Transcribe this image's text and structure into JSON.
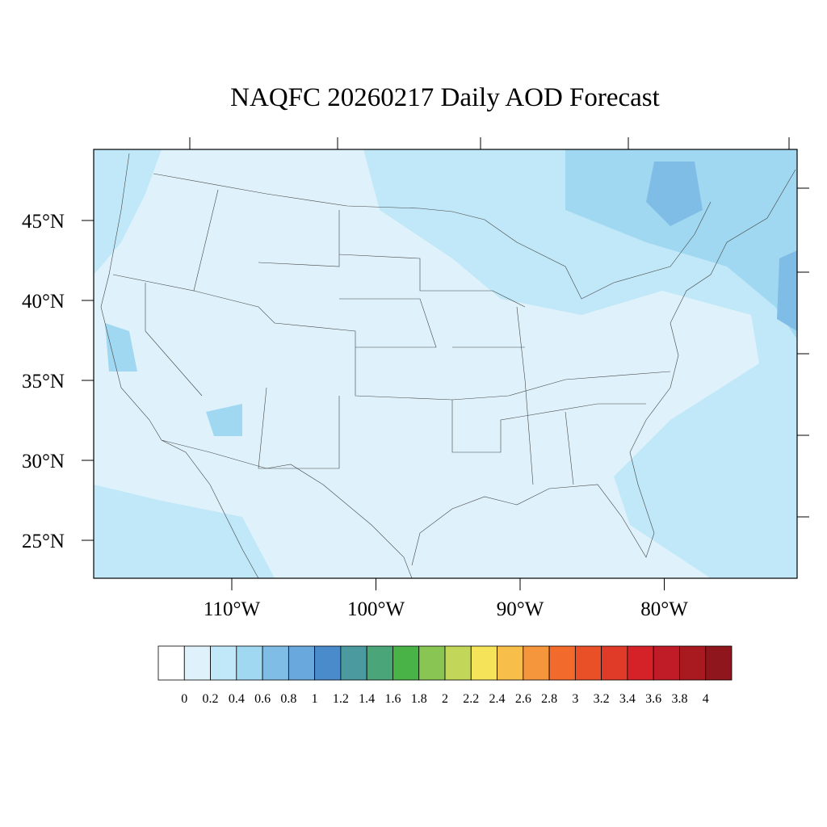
{
  "title": "NAQFC 20260217 Daily AOD Forecast",
  "map": {
    "lat_ticks": [
      {
        "value": 45,
        "label": "45°N"
      },
      {
        "value": 40,
        "label": "40°N"
      },
      {
        "value": 35,
        "label": "35°N"
      },
      {
        "value": 30,
        "label": "30°N"
      },
      {
        "value": 25,
        "label": "25°N"
      }
    ],
    "lon_ticks": [
      {
        "value": -110,
        "label": "110°W"
      },
      {
        "value": -100,
        "label": "100°W"
      },
      {
        "value": -90,
        "label": "90°W"
      },
      {
        "value": -80,
        "label": "80°W"
      }
    ]
  },
  "colorbar": {
    "levels": [
      0,
      0.2,
      0.4,
      0.6,
      0.8,
      1,
      1.2,
      1.4,
      1.6,
      1.8,
      2,
      2.2,
      2.4,
      2.6,
      2.8,
      3,
      3.2,
      3.4,
      3.6,
      3.8,
      4
    ],
    "colors": [
      "#ffffff",
      "#dff2fb",
      "#c0e8f8",
      "#a0d8f2",
      "#80bde6",
      "#68a8dc",
      "#4a8ccb",
      "#4a9aa0",
      "#4aa578",
      "#4ab348",
      "#88c552",
      "#c2d65a",
      "#f5e35a",
      "#f7be4a",
      "#f5963c",
      "#f26a2c",
      "#ea5028",
      "#e03a28",
      "#d42228",
      "#c01c28",
      "#a81a20",
      "#8e161c"
    ]
  }
}
